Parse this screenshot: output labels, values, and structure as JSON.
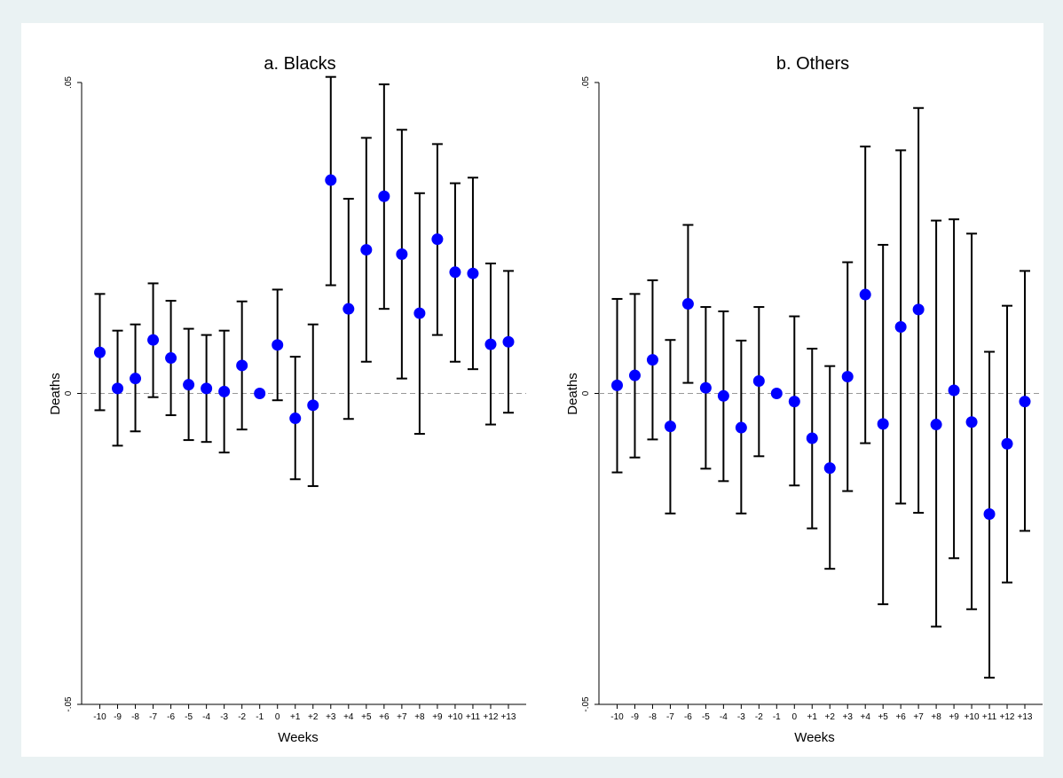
{
  "chart_data": [
    {
      "type": "scatter",
      "title": "a. Blacks",
      "xlabel": "Weeks",
      "ylabel": "Deaths",
      "ylim": [
        -0.05,
        0.05
      ],
      "yticks": [
        ".05",
        "0",
        "-.05"
      ],
      "reference_line": 0,
      "categories": [
        "-10",
        "-9",
        "-8",
        "-7",
        "-6",
        "-5",
        "-4",
        "-3",
        "-2",
        "-1",
        "0",
        "+1",
        "+2",
        "+3",
        "+4",
        "+5",
        "+6",
        "+7",
        "+8",
        "+9",
        "+10",
        "+11",
        "+12",
        "+13"
      ],
      "series": [
        {
          "estimate": [
            0.0066,
            0.0008,
            0.0024,
            0.0086,
            0.0057,
            0.0014,
            0.0008,
            0.0003,
            0.0045,
            0.0,
            0.0078,
            -0.004,
            -0.0019,
            0.0343,
            0.0136,
            0.0231,
            0.0317,
            0.0224,
            0.0129,
            0.0248,
            0.0195,
            0.0193,
            0.0079,
            0.0083
          ],
          "ci_low": [
            -0.0027,
            -0.0084,
            -0.0061,
            -0.0006,
            -0.0035,
            -0.0075,
            -0.0078,
            -0.0095,
            -0.0058,
            0.0,
            -0.0011,
            -0.0138,
            -0.0149,
            0.0174,
            -0.0041,
            0.0051,
            0.0136,
            0.0024,
            -0.0065,
            0.0094,
            0.0051,
            0.0039,
            -0.005,
            -0.0031
          ],
          "ci_high": [
            0.016,
            0.0101,
            0.0111,
            0.0177,
            0.0149,
            0.0104,
            0.0094,
            0.0101,
            0.0148,
            0.0,
            0.0167,
            0.0059,
            0.0111,
            0.0509,
            0.0313,
            0.0411,
            0.0497,
            0.0424,
            0.0322,
            0.0401,
            0.0338,
            0.0347,
            0.0209,
            0.0197
          ]
        }
      ]
    },
    {
      "type": "scatter",
      "title": "b. Others",
      "xlabel": "Weeks",
      "ylabel": "Deaths",
      "ylim": [
        -0.05,
        0.05
      ],
      "yticks": [
        ".05",
        "0",
        "-.05"
      ],
      "reference_line": 0,
      "categories": [
        "-10",
        "-9",
        "-8",
        "-7",
        "-6",
        "-5",
        "-4",
        "-3",
        "-2",
        "-1",
        "0",
        "+1",
        "+2",
        "+3",
        "+4",
        "+5",
        "+6",
        "+7",
        "+8",
        "+9",
        "+10",
        "+11",
        "+12",
        "+13"
      ],
      "series": [
        {
          "estimate": [
            0.0013,
            0.0029,
            0.0054,
            -0.0053,
            0.0144,
            0.0009,
            -0.0004,
            -0.0055,
            0.002,
            0.0,
            -0.0013,
            -0.0072,
            -0.012,
            0.0027,
            0.0159,
            -0.0049,
            0.0107,
            0.0135,
            -0.005,
            0.0005,
            -0.0046,
            -0.0194,
            -0.0081,
            -0.0013
          ],
          "ci_low": [
            -0.0127,
            -0.0103,
            -0.0074,
            -0.0193,
            0.0017,
            -0.0121,
            -0.0141,
            -0.0193,
            -0.0101,
            0.0,
            -0.0148,
            -0.0217,
            -0.0282,
            -0.0157,
            -0.008,
            -0.0339,
            -0.0177,
            -0.0192,
            -0.0375,
            -0.0265,
            -0.0347,
            -0.0457,
            -0.0304,
            -0.0221
          ],
          "ci_high": [
            0.0152,
            0.016,
            0.0182,
            0.0086,
            0.0271,
            0.0139,
            0.0132,
            0.0085,
            0.0139,
            0.0,
            0.0124,
            0.0072,
            0.0044,
            0.0211,
            0.0397,
            0.0239,
            0.0391,
            0.0459,
            0.0278,
            0.028,
            0.0257,
            0.0067,
            0.0141,
            0.0197
          ]
        }
      ]
    }
  ],
  "colors": {
    "background": "#eaf2f3",
    "plot_area": "#ffffff",
    "marker": "#0000ff",
    "error_bar": "#000000",
    "reference_line": "#999999"
  }
}
